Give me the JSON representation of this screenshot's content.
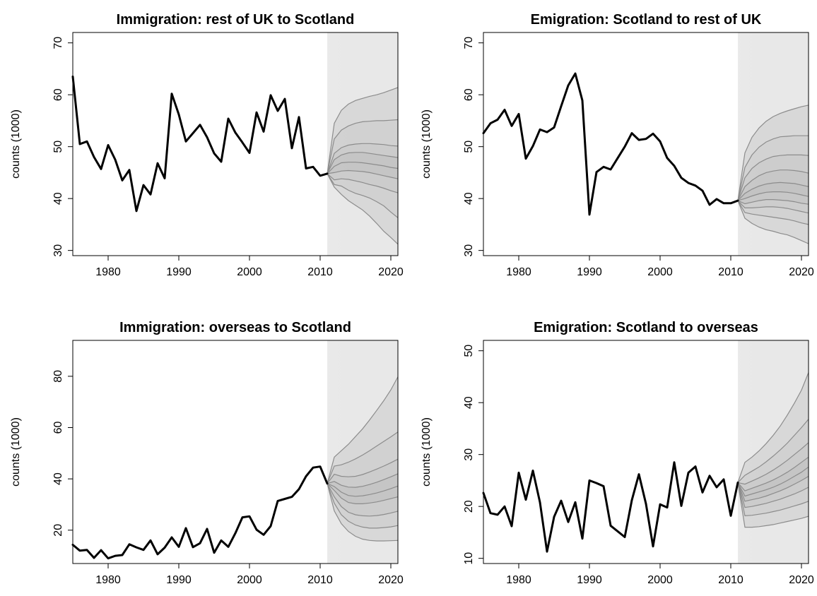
{
  "chart_data": [
    {
      "type": "line",
      "title": "Immigration: rest of UK to Scotland",
      "xlabel": "",
      "ylabel": "counts (1000)",
      "xlim": [
        1975,
        2021
      ],
      "ylim": [
        29,
        72
      ],
      "xticks": [
        1980,
        1990,
        2000,
        2010,
        2020
      ],
      "yticks": [
        30,
        40,
        50,
        60,
        70
      ],
      "grid": false,
      "historical": {
        "x": [
          1975,
          1976,
          1977,
          1978,
          1979,
          1980,
          1981,
          1982,
          1983,
          1984,
          1985,
          1986,
          1987,
          1988,
          1989,
          1990,
          1991,
          1992,
          1993,
          1994,
          1995,
          1996,
          1997,
          1998,
          1999,
          2000,
          2001,
          2002,
          2003,
          2004,
          2005,
          2006,
          2007,
          2008,
          2009,
          2010,
          2011
        ],
        "y": [
          63.5,
          50.5,
          51.0,
          48.0,
          45.7,
          50.3,
          47.5,
          43.5,
          45.5,
          37.6,
          42.6,
          40.8,
          46.8,
          43.9,
          60.2,
          56.2,
          51.0,
          52.6,
          54.2,
          51.8,
          48.7,
          47.1,
          55.4,
          52.7,
          50.8,
          48.8,
          56.6,
          52.9,
          59.9,
          56.9,
          59.2,
          49.7,
          55.7,
          45.8,
          46.1,
          44.4,
          44.8
        ]
      },
      "forecast": {
        "x": [
          2011,
          2012,
          2013,
          2014,
          2015,
          2016,
          2017,
          2018,
          2019,
          2020,
          2021
        ],
        "quantiles": [
          [
            44.8,
            42.2,
            40.8,
            39.6,
            38.7,
            37.8,
            36.6,
            35.2,
            33.7,
            32.5,
            31.2
          ],
          [
            44.8,
            42.7,
            42.4,
            41.6,
            41.0,
            40.6,
            40.1,
            39.4,
            38.6,
            37.4,
            36.3
          ],
          [
            44.8,
            43.6,
            43.8,
            43.7,
            43.4,
            43.1,
            42.7,
            42.4,
            42.0,
            41.5,
            41.1
          ],
          [
            44.8,
            45.0,
            45.3,
            45.4,
            45.3,
            45.2,
            45.0,
            44.7,
            44.4,
            44.1,
            43.8
          ],
          [
            44.8,
            46.2,
            46.9,
            47.0,
            47.0,
            46.9,
            46.7,
            46.5,
            46.3,
            46.0,
            45.8
          ],
          [
            44.8,
            47.5,
            48.4,
            48.8,
            48.9,
            48.9,
            48.7,
            48.5,
            48.3,
            48.1,
            47.9
          ],
          [
            44.8,
            48.7,
            49.8,
            50.3,
            50.5,
            50.6,
            50.6,
            50.5,
            50.4,
            50.2,
            50.1
          ],
          [
            44.8,
            51.5,
            53.2,
            54.0,
            54.5,
            54.8,
            54.9,
            55.0,
            55.0,
            55.1,
            55.2
          ],
          [
            44.8,
            54.5,
            57.0,
            58.2,
            58.9,
            59.3,
            59.7,
            60.0,
            60.4,
            60.9,
            61.4
          ]
        ]
      }
    },
    {
      "type": "line",
      "title": "Emigration: Scotland to rest of UK",
      "xlabel": "",
      "ylabel": "counts (1000)",
      "xlim": [
        1975,
        2021
      ],
      "ylim": [
        29,
        72
      ],
      "xticks": [
        1980,
        1990,
        2000,
        2010,
        2020
      ],
      "yticks": [
        30,
        40,
        50,
        60,
        70
      ],
      "grid": false,
      "historical": {
        "x": [
          1975,
          1976,
          1977,
          1978,
          1979,
          1980,
          1981,
          1982,
          1983,
          1984,
          1985,
          1986,
          1987,
          1988,
          1989,
          1990,
          1991,
          1992,
          1993,
          1994,
          1995,
          1996,
          1997,
          1998,
          1999,
          2000,
          2001,
          2002,
          2003,
          2004,
          2005,
          2006,
          2007,
          2008,
          2009,
          2010,
          2011
        ],
        "y": [
          52.6,
          54.5,
          55.2,
          57.1,
          54.0,
          56.3,
          47.7,
          50.1,
          53.3,
          52.8,
          53.7,
          57.8,
          61.8,
          64.1,
          58.9,
          36.9,
          45.1,
          46.1,
          45.6,
          47.8,
          50.0,
          52.6,
          51.3,
          51.5,
          52.5,
          51.0,
          47.8,
          46.3,
          44.0,
          43.0,
          42.5,
          41.5,
          38.8,
          39.9,
          39.1,
          39.1,
          39.6
        ]
      },
      "forecast": {
        "x": [
          2011,
          2012,
          2013,
          2014,
          2015,
          2016,
          2017,
          2018,
          2019,
          2020,
          2021
        ],
        "quantiles": [
          [
            39.6,
            36.2,
            35.2,
            34.5,
            34.0,
            33.7,
            33.3,
            33.0,
            32.5,
            31.9,
            31.3
          ],
          [
            39.6,
            37.3,
            37.0,
            36.8,
            36.6,
            36.4,
            36.2,
            36.0,
            35.7,
            35.3,
            35.0
          ],
          [
            39.6,
            38.2,
            38.2,
            38.3,
            38.4,
            38.4,
            38.3,
            38.1,
            37.8,
            37.5,
            37.2
          ],
          [
            39.6,
            39.0,
            39.3,
            39.6,
            39.8,
            39.8,
            39.7,
            39.6,
            39.4,
            39.1,
            38.9
          ],
          [
            39.6,
            40.0,
            40.5,
            40.9,
            41.2,
            41.3,
            41.3,
            41.2,
            41.0,
            40.7,
            40.4
          ],
          [
            39.6,
            41.0,
            41.8,
            42.4,
            42.8,
            43.0,
            43.1,
            43.0,
            42.9,
            42.6,
            42.3
          ],
          [
            39.6,
            42.3,
            43.5,
            44.4,
            45.0,
            45.3,
            45.5,
            45.5,
            45.4,
            45.2,
            44.9
          ],
          [
            39.6,
            44.0,
            45.8,
            46.9,
            47.6,
            48.1,
            48.3,
            48.4,
            48.4,
            48.4,
            48.3
          ],
          [
            39.6,
            46.0,
            48.4,
            49.9,
            50.9,
            51.5,
            51.9,
            52.0,
            52.1,
            52.1,
            52.1
          ],
          [
            39.6,
            48.8,
            51.8,
            53.6,
            54.9,
            55.8,
            56.4,
            56.9,
            57.3,
            57.7,
            58.0
          ]
        ]
      }
    },
    {
      "type": "line",
      "title": "Immigration: overseas to Scotland",
      "xlabel": "",
      "ylabel": "counts (1000)",
      "xlim": [
        1975,
        2021
      ],
      "ylim": [
        7,
        94
      ],
      "xticks": [
        1980,
        1990,
        2000,
        2010,
        2020
      ],
      "yticks": [
        20,
        40,
        60,
        80
      ],
      "grid": false,
      "historical": {
        "x": [
          1975,
          1976,
          1977,
          1978,
          1979,
          1980,
          1981,
          1982,
          1983,
          1984,
          1985,
          1986,
          1987,
          1988,
          1989,
          1990,
          1991,
          1992,
          1993,
          1994,
          1995,
          1996,
          1997,
          1998,
          1999,
          2000,
          2001,
          2002,
          2003,
          2004,
          2005,
          2006,
          2007,
          2008,
          2009,
          2010,
          2011
        ],
        "y": [
          14.3,
          12.0,
          12.3,
          9.2,
          12.2,
          9.0,
          10.0,
          10.3,
          14.5,
          13.3,
          12.3,
          16.0,
          10.6,
          13.2,
          17.2,
          13.5,
          20.8,
          13.4,
          14.9,
          20.5,
          11.2,
          16.0,
          13.5,
          18.8,
          25.0,
          25.4,
          20.2,
          18.2,
          21.6,
          31.4,
          32.2,
          33.0,
          36.0,
          41.0,
          44.4,
          44.8,
          38.2
        ]
      },
      "forecast": {
        "x": [
          2011,
          2012,
          2013,
          2014,
          2015,
          2016,
          2017,
          2018,
          2019,
          2020,
          2021
        ],
        "quantiles": [
          [
            38.2,
            27.5,
            22.5,
            19.5,
            17.6,
            16.5,
            16.0,
            15.8,
            15.8,
            15.9,
            16.0
          ],
          [
            38.2,
            30.5,
            26.0,
            23.5,
            22.0,
            21.2,
            20.8,
            20.8,
            21.0,
            21.3,
            21.8
          ],
          [
            38.2,
            33.0,
            29.2,
            27.0,
            26.0,
            25.6,
            25.5,
            25.7,
            26.1,
            26.7,
            27.4
          ],
          [
            38.2,
            35.5,
            32.5,
            30.8,
            30.3,
            30.3,
            30.6,
            31.0,
            31.6,
            32.3,
            33.0
          ],
          [
            38.2,
            37.0,
            34.8,
            33.5,
            33.2,
            33.4,
            33.9,
            34.5,
            35.3,
            36.2,
            37.2
          ],
          [
            38.2,
            39.0,
            37.5,
            36.8,
            36.7,
            37.1,
            37.8,
            38.7,
            39.7,
            40.8,
            42.0
          ],
          [
            38.2,
            41.8,
            41.0,
            40.8,
            41.0,
            41.7,
            42.7,
            43.8,
            45.0,
            46.3,
            47.7
          ],
          [
            38.2,
            45.0,
            45.5,
            46.5,
            47.8,
            49.3,
            51.0,
            52.8,
            54.6,
            56.4,
            58.3
          ],
          [
            38.2,
            48.5,
            51.0,
            53.5,
            56.5,
            59.5,
            63.0,
            66.7,
            70.5,
            74.7,
            79.8
          ]
        ]
      }
    },
    {
      "type": "line",
      "title": "Emigration: Scotland to overseas",
      "xlabel": "",
      "ylabel": "counts (1000)",
      "xlim": [
        1975,
        2021
      ],
      "ylim": [
        9,
        52
      ],
      "xticks": [
        1980,
        1990,
        2000,
        2010,
        2020
      ],
      "yticks": [
        10,
        20,
        30,
        40,
        50
      ],
      "grid": false,
      "historical": {
        "x": [
          1975,
          1976,
          1977,
          1978,
          1979,
          1980,
          1981,
          1982,
          1983,
          1984,
          1985,
          1986,
          1987,
          1988,
          1989,
          1990,
          1991,
          1992,
          1993,
          1994,
          1995,
          1996,
          1997,
          1998,
          1999,
          2000,
          2001,
          2002,
          2003,
          2004,
          2005,
          2006,
          2007,
          2008,
          2009,
          2010,
          2011
        ],
        "y": [
          22.6,
          18.7,
          18.4,
          20.0,
          16.2,
          26.5,
          21.3,
          26.9,
          20.8,
          11.3,
          18.0,
          21.1,
          17.0,
          20.8,
          13.8,
          25.0,
          24.5,
          23.9,
          16.3,
          15.2,
          14.1,
          21.2,
          26.2,
          20.5,
          12.3,
          20.4,
          19.8,
          28.5,
          20.1,
          26.5,
          27.7,
          22.7,
          25.9,
          23.7,
          25.2,
          18.2,
          24.6
        ]
      },
      "forecast": {
        "x": [
          2011,
          2012,
          2013,
          2014,
          2015,
          2016,
          2017,
          2018,
          2019,
          2020,
          2021
        ],
        "quantiles": [
          [
            24.6,
            16.0,
            16.0,
            16.1,
            16.3,
            16.5,
            16.8,
            17.1,
            17.4,
            17.7,
            18.1
          ],
          [
            24.6,
            18.2,
            18.3,
            18.5,
            18.7,
            19.0,
            19.3,
            19.7,
            20.1,
            20.5,
            21.0
          ],
          [
            24.6,
            19.8,
            20.0,
            20.3,
            20.6,
            21.0,
            21.4,
            21.9,
            22.4,
            23.0,
            23.7
          ],
          [
            24.6,
            21.0,
            21.3,
            21.6,
            22.0,
            22.5,
            23.0,
            23.6,
            24.3,
            25.0,
            25.8
          ],
          [
            24.6,
            22.0,
            22.4,
            22.8,
            23.2,
            23.7,
            24.3,
            25.0,
            25.8,
            26.6,
            27.6
          ],
          [
            24.6,
            23.0,
            23.5,
            24.0,
            24.5,
            25.1,
            25.8,
            26.6,
            27.5,
            28.5,
            29.5
          ],
          [
            24.6,
            24.3,
            24.9,
            25.5,
            26.2,
            27.0,
            27.9,
            28.9,
            30.0,
            31.1,
            32.3
          ],
          [
            24.6,
            26.0,
            26.8,
            27.6,
            28.6,
            29.7,
            30.9,
            32.2,
            33.7,
            35.2,
            36.8
          ],
          [
            24.6,
            28.5,
            29.5,
            30.7,
            32.1,
            33.7,
            35.5,
            37.6,
            39.9,
            42.4,
            45.8
          ]
        ]
      }
    }
  ]
}
